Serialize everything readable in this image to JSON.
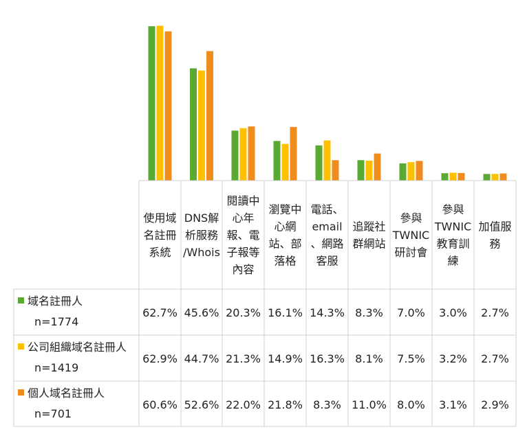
{
  "chart_data": {
    "type": "bar",
    "title": "",
    "xlabel": "",
    "ylabel": "",
    "ylim": [
      0,
      70
    ],
    "grid": false,
    "legend_position": "data-table-left",
    "categories": [
      [
        "使用域",
        "名註冊",
        "系統"
      ],
      [
        "DNS解",
        "析服務",
        "/Whois"
      ],
      [
        "閱讀中",
        "心年",
        "報、電",
        "子報等",
        "內容"
      ],
      [
        "瀏覽中",
        "心網",
        "站、部",
        "落格"
      ],
      [
        "電話、",
        "email",
        "、網路",
        "客服"
      ],
      [
        "追蹤社",
        "群網站"
      ],
      [
        "參與",
        "TWNIC",
        "研討會"
      ],
      [
        "參與",
        "TWNIC",
        "教育訓",
        "練"
      ],
      [
        "加值服",
        "務"
      ]
    ],
    "series": [
      {
        "name": "域名註冊人",
        "sample": "n=1774",
        "color": "#5aaa32",
        "values": [
          62.7,
          45.6,
          20.3,
          16.1,
          14.3,
          8.3,
          7.0,
          3.0,
          2.7
        ],
        "labels": [
          "62.7%",
          "45.6%",
          "20.3%",
          "16.1%",
          "14.3%",
          "8.3%",
          "7.0%",
          "3.0%",
          "2.7%"
        ]
      },
      {
        "name": "公司組織域名註冊人",
        "sample": "n=1419",
        "color": "#ffc000",
        "values": [
          62.9,
          44.7,
          21.3,
          14.9,
          16.3,
          8.1,
          7.5,
          3.2,
          2.7
        ],
        "labels": [
          "62.9%",
          "44.7%",
          "21.3%",
          "14.9%",
          "16.3%",
          "8.1%",
          "7.5%",
          "3.2%",
          "2.7%"
        ]
      },
      {
        "name": "個人域名註冊人",
        "sample": "n=701",
        "color": "#f08c1e",
        "values": [
          60.6,
          52.6,
          22.0,
          21.8,
          8.3,
          11.0,
          8.0,
          3.1,
          2.9
        ],
        "labels": [
          "60.6%",
          "52.6%",
          "22.0%",
          "21.8%",
          "8.3%",
          "11.0%",
          "8.0%",
          "3.1%",
          "2.9%"
        ]
      }
    ]
  }
}
